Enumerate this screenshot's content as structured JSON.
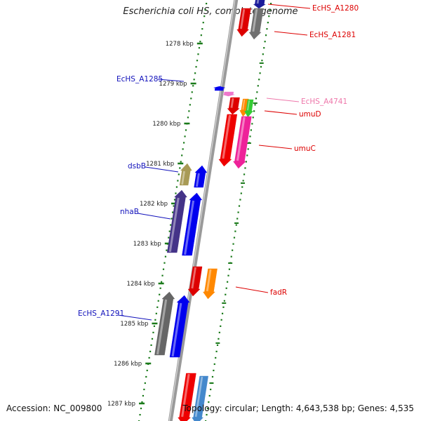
{
  "title": "Escherichia coli HS, complete genome",
  "footer": {
    "accession": "Accession: NC_009800",
    "summary": "Topology: circular; Length: 4,643,538 bp; Genes: 4,535"
  },
  "colors": {
    "background": "#ffffff",
    "tick_mark": "#1a7a1a",
    "backbone": "#8a8a8a",
    "label_forward": "#1111bb",
    "label_reverse": "#dd0000",
    "label_pink": "#ee77aa"
  },
  "ticks": [
    {
      "label": "1278 kbp"
    },
    {
      "label": "1279 kbp"
    },
    {
      "label": "1280 kbp"
    },
    {
      "label": "1281 kbp"
    },
    {
      "label": "1282 kbp"
    },
    {
      "label": "1283 kbp"
    },
    {
      "label": "1284 kbp"
    },
    {
      "label": "1285 kbp"
    },
    {
      "label": "1286 kbp"
    },
    {
      "label": "1287 kbp"
    }
  ],
  "gene_labels": [
    {
      "name": "EcHS_A1280",
      "color": "#dd0000"
    },
    {
      "name": "EcHS_A1281",
      "color": "#dd0000"
    },
    {
      "name": "EcHS_A4741",
      "color": "#ee77aa"
    },
    {
      "name": "umuD",
      "color": "#dd0000"
    },
    {
      "name": "umuC",
      "color": "#dd0000"
    },
    {
      "name": "fadR",
      "color": "#dd0000"
    },
    {
      "name": "EcHS_A1285",
      "color": "#1111bb"
    },
    {
      "name": "dsbB",
      "color": "#1111bb"
    },
    {
      "name": "nhaB",
      "color": "#1111bb"
    },
    {
      "name": "EcHS_A1291",
      "color": "#1111bb"
    }
  ],
  "genes": [
    {
      "id": "gene-a1280",
      "color": "#1a1a9a",
      "strand": "reverse"
    },
    {
      "id": "gene-a1281a",
      "color": "#dd0000",
      "strand": "reverse"
    },
    {
      "id": "gene-a1281b",
      "color": "#707070",
      "strand": "reverse"
    },
    {
      "id": "gene-a4741",
      "color": "#ee77cc",
      "strand": "reverse"
    },
    {
      "id": "gene-umud-a",
      "color": "#dd0000",
      "strand": "reverse"
    },
    {
      "id": "gene-umud-b",
      "color": "#ff8800",
      "strand": "reverse"
    },
    {
      "id": "gene-umud-c",
      "color": "#33cc33",
      "strand": "reverse"
    },
    {
      "id": "gene-umuc-a",
      "color": "#ee0000",
      "strand": "reverse"
    },
    {
      "id": "gene-umuc-b",
      "color": "#ee2299",
      "strand": "reverse"
    },
    {
      "id": "gene-a1285",
      "color": "#0000ee",
      "strand": "forward"
    },
    {
      "id": "gene-dsbb-a",
      "color": "#a89a55",
      "strand": "forward"
    },
    {
      "id": "gene-dsbb-b",
      "color": "#0000ee",
      "strand": "forward"
    },
    {
      "id": "gene-nhab-a",
      "color": "#443388",
      "strand": "forward"
    },
    {
      "id": "gene-nhab-b",
      "color": "#0000ee",
      "strand": "forward"
    },
    {
      "id": "gene-fadr-a",
      "color": "#dd0000",
      "strand": "reverse"
    },
    {
      "id": "gene-fadr-b",
      "color": "#ff8800",
      "strand": "reverse"
    },
    {
      "id": "gene-a1291-a",
      "color": "#666666",
      "strand": "forward"
    },
    {
      "id": "gene-a1291-b",
      "color": "#0000ee",
      "strand": "forward"
    },
    {
      "id": "gene-bottom-a",
      "color": "#ee0000",
      "strand": "reverse"
    },
    {
      "id": "gene-bottom-b",
      "color": "#4488cc",
      "strand": "reverse"
    }
  ]
}
